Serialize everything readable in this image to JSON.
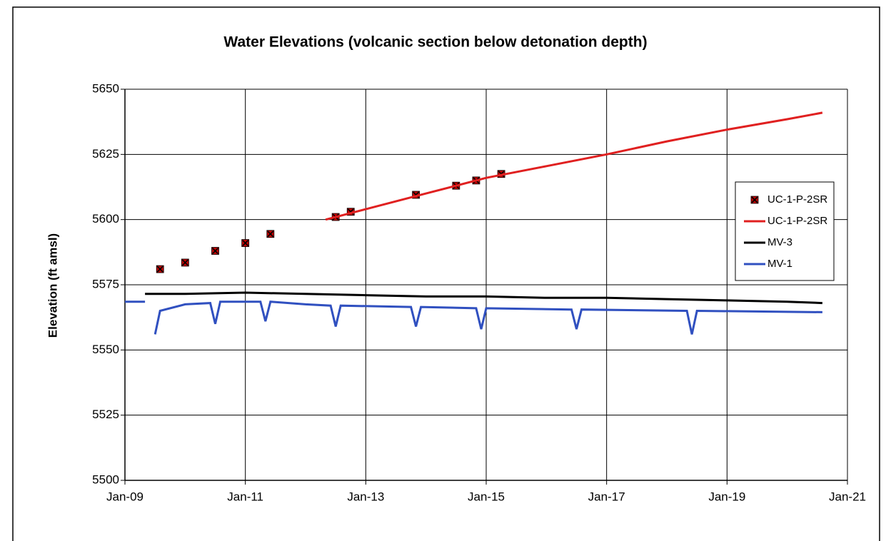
{
  "chart_data": {
    "type": "line",
    "title": "Water Elevations (volcanic section below detonation depth)",
    "y_label": "Elevation (ft amsl)",
    "xlim": [
      "2009-01",
      "2021-01"
    ],
    "xticks": [
      {
        "value": "2009-01",
        "label": "Jan-09"
      },
      {
        "value": "2011-01",
        "label": "Jan-11"
      },
      {
        "value": "2013-01",
        "label": "Jan-13"
      },
      {
        "value": "2015-01",
        "label": "Jan-15"
      },
      {
        "value": "2017-01",
        "label": "Jan-17"
      },
      {
        "value": "2019-01",
        "label": "Jan-19"
      },
      {
        "value": "2021-01",
        "label": "Jan-21"
      }
    ],
    "ylim": [
      5500,
      5650
    ],
    "yticks": [
      5500,
      5525,
      5550,
      5575,
      5600,
      5625,
      5650
    ],
    "grid": true,
    "legend": "right",
    "series": [
      {
        "name": "UC-1-P-2SR",
        "color": "#c00000",
        "mode": "markers",
        "x": [
          "2009-08",
          "2010-01",
          "2010-07",
          "2011-01",
          "2011-06",
          "2012-07",
          "2012-10",
          "2013-11",
          "2014-07",
          "2014-11",
          "2015-04"
        ],
        "values": [
          5581,
          5583.5,
          5588,
          5591,
          5594.5,
          5601,
          5603,
          5609.5,
          5613,
          5615,
          5617.5
        ]
      },
      {
        "name": "UC-1-P-2SR",
        "color": "#e02020",
        "mode": "lines",
        "x": [
          "2012-05",
          "2013-01",
          "2014-01",
          "2015-01",
          "2016-01",
          "2017-01",
          "2018-01",
          "2019-01",
          "2020-01",
          "2020-08"
        ],
        "values": [
          5600,
          5604,
          5610,
          5616,
          5620.5,
          5625,
          5630,
          5634.5,
          5638.5,
          5641
        ]
      },
      {
        "name": "MV-3",
        "color": "#000000",
        "mode": "lines",
        "x": [
          "2009-05",
          "2010-01",
          "2011-01",
          "2012-01",
          "2013-01",
          "2014-01",
          "2015-01",
          "2016-01",
          "2017-01",
          "2018-01",
          "2019-01",
          "2020-01",
          "2020-08"
        ],
        "values": [
          5571.5,
          5571.5,
          5572,
          5571.5,
          5571,
          5570.5,
          5570.5,
          5570,
          5570,
          5569.5,
          5569,
          5568.5,
          5568
        ]
      },
      {
        "name": "MV-1",
        "color": "#3050c0",
        "mode": "lines",
        "x": [
          "2009-01",
          "2009-05",
          "2009-06",
          "2009-07",
          "2009-08",
          "2010-01",
          "2010-06",
          "2010-07",
          "2010-08",
          "2011-04",
          "2011-05",
          "2011-06",
          "2012-01",
          "2012-06",
          "2012-07",
          "2012-08",
          "2013-10",
          "2013-11",
          "2013-12",
          "2014-11",
          "2014-12",
          "2015-01",
          "2016-06",
          "2016-07",
          "2016-08",
          "2018-05",
          "2018-06",
          "2018-07",
          "2020-08"
        ],
        "values": [
          5568.5,
          5568.5,
          null,
          5556,
          5565,
          5567.5,
          5568,
          5560,
          5568.5,
          5568.5,
          5561,
          5568.5,
          5567.5,
          5567,
          5559,
          5567,
          5566.5,
          5559,
          5566.5,
          5566,
          5558,
          5566,
          5565.5,
          5558,
          5565.5,
          5565,
          5556,
          5565,
          5564.5
        ]
      }
    ]
  }
}
